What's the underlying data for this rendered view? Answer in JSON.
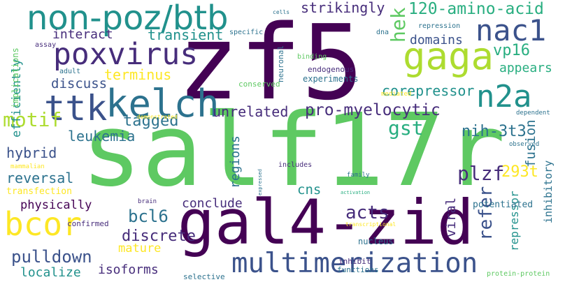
{
  "palette": {
    "dark_purple": "#440154",
    "indigo": "#472d7b",
    "blue": "#3b528b",
    "slate": "#2c728e",
    "teal": "#21918c",
    "sea_green": "#28ae80",
    "green": "#5ec962",
    "lime": "#addc30",
    "yellow": "#fde725"
  },
  "words": {
    "salf17r": "salf17r",
    "zf5": "zf5",
    "gal4_zid": "gal4-zid",
    "non_poz_btb": "non-poz/btb",
    "kelch": "kelch",
    "poxvirus": "poxvirus",
    "multimerization": "multimerization",
    "gaga": "gaga",
    "nac1": "nac1",
    "ttk": "ttk",
    "n2a": "n2a",
    "bcor": "bcor",
    "pro_myelocytic": "pro-myelocytic",
    "amino_acid_120": "120-amino-acid",
    "tagged": "tagged",
    "corepressor": "corepressor",
    "pulldown": "pulldown",
    "gst": "gst",
    "nih_3t3": "nih-3t3",
    "hek": "hek",
    "unrelated": "unrelated",
    "strikingly": "strikingly",
    "vp16": "vp16",
    "plzf": "plzf",
    "transient": "transient",
    "interact": "interact",
    "discuss": "discuss",
    "terminus": "terminus",
    "motif": "motif",
    "leukemia": "leukemia",
    "hybrid": "hybrid",
    "reversal": "reversal",
    "conclude": "conclude",
    "physically": "physically",
    "acts": "acts",
    "bcl6": "bcl6",
    "discrete": "discrete",
    "refer": "refer",
    "fusion": "fusion",
    "t293": "293t",
    "appears": "appears",
    "domains": "domains",
    "efficiently": "efficiently",
    "mature": "mature",
    "isoforms": "isoforms",
    "localize": "localize",
    "cns": "cns",
    "regions": "regions",
    "viral": "viral",
    "repressor": "repressor",
    "inhibitory": "inhibitory",
    "potentiated": "potentiated",
    "nucleus": "nucleus",
    "implications": "implications",
    "endogenous": "endogenous",
    "experiments": "experiments",
    "conserved": "conserved",
    "neuronal": "neuronal",
    "transfection": "transfection",
    "confirmed": "confirmed",
    "selective": "selective",
    "functions": "functions",
    "inhibit": "inhibit",
    "protein_protein": "protein-protein",
    "cells": "cells",
    "repression": "repression",
    "specific": "specific",
    "dna": "dna",
    "assay": "assay",
    "adult": "adult",
    "binding": "binding",
    "mediated": "mediated",
    "dependent": "dependent",
    "demonstrated": "demonstrated",
    "observed": "observed",
    "mammalian": "mammalian",
    "includes": "includes",
    "family": "family",
    "expressed": "expressed",
    "activation": "activation",
    "brain": "brain",
    "transcriptional": "transcriptional"
  }
}
